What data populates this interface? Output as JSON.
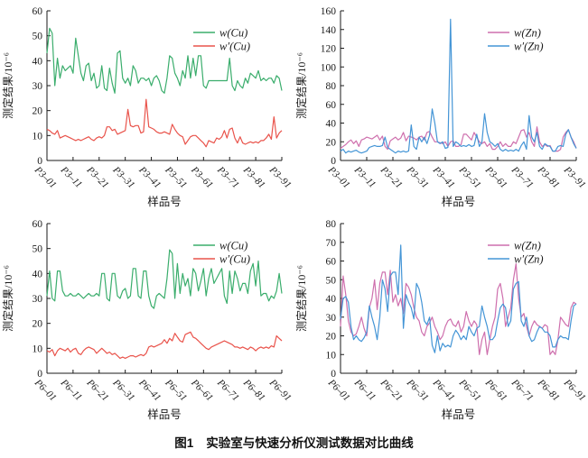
{
  "figure": {
    "caption_label": "图1",
    "caption_text": "实验室与快速分析仪测试数据对比曲线"
  },
  "colors": {
    "green": "#3aad6c",
    "red": "#e9534b",
    "pink": "#ce6fad",
    "blue": "#4495d6",
    "axis": "#1a1a1a"
  },
  "chart_data": [
    {
      "type": "line",
      "panel": "top-left",
      "ylabel": "测定结果/10⁻⁶",
      "xlabel": "样品号",
      "ylim": [
        0,
        60
      ],
      "yticks": [
        0,
        10,
        20,
        30,
        40,
        50,
        60
      ],
      "xtick_positions": [
        1,
        11,
        21,
        31,
        41,
        51,
        61,
        71,
        81,
        91
      ],
      "xtick_labels": [
        "P3–01",
        "P3–11",
        "P3–21",
        "P3–31",
        "P3–41",
        "P3–51",
        "P3–61",
        "P3–71",
        "P3–81",
        "P3–91"
      ],
      "grid": false,
      "legend_position": "top-right-inside",
      "series": [
        {
          "name": "w(Cu)",
          "color": "#3aad6c",
          "values": [
            43,
            53,
            51,
            30,
            41,
            33,
            38,
            36,
            37,
            38,
            35,
            49,
            42,
            35,
            32,
            38,
            39,
            32,
            35,
            29,
            30,
            38,
            29,
            28,
            37,
            31,
            27,
            43,
            44,
            33,
            31,
            33,
            30,
            38,
            36,
            31,
            33,
            33,
            32,
            33,
            30,
            33,
            34,
            32,
            28,
            27,
            33,
            42,
            41,
            35,
            33,
            30,
            36,
            33,
            42,
            33,
            41,
            34,
            42,
            42,
            30,
            29,
            32,
            32,
            32,
            32,
            32,
            32,
            32,
            32,
            41,
            30,
            28,
            32,
            30,
            29,
            33,
            31,
            35,
            34,
            33,
            36,
            32,
            33,
            32,
            33,
            33,
            31,
            34,
            33,
            28
          ]
        },
        {
          "name": "w′(Cu)",
          "color": "#e9534b",
          "values": [
            12.5,
            12,
            11,
            10.5,
            12,
            9,
            9.5,
            10,
            9.5,
            9,
            8.5,
            8,
            8.5,
            8,
            8.5,
            9,
            9.5,
            8.5,
            8,
            9,
            9.5,
            9,
            10,
            13.5,
            13.5,
            12,
            12.5,
            10.5,
            11,
            11.5,
            12,
            20.5,
            14,
            13.5,
            14,
            14,
            11,
            11.5,
            24.5,
            13.5,
            13,
            12.5,
            11.5,
            11,
            11,
            11.5,
            11,
            10.5,
            14.5,
            12.5,
            11,
            10,
            9.5,
            6.5,
            8,
            9.5,
            10,
            10,
            9,
            8,
            7,
            5.5,
            8,
            7.5,
            7,
            9,
            8.5,
            9.5,
            12,
            9,
            12.5,
            13,
            9,
            7,
            9.5,
            7,
            6.5,
            7,
            7.5,
            7,
            7.5,
            7,
            8,
            8,
            9,
            10.5,
            8.5,
            17.5,
            9,
            11,
            12
          ]
        }
      ]
    },
    {
      "type": "line",
      "panel": "top-right",
      "ylabel": "测定结果/10⁻⁶",
      "xlabel": "样品号",
      "ylim": [
        0,
        160
      ],
      "yticks": [
        0,
        20,
        40,
        60,
        80,
        100,
        120,
        140,
        160
      ],
      "xtick_positions": [
        1,
        11,
        21,
        31,
        41,
        51,
        61,
        71,
        81,
        91
      ],
      "xtick_labels": [
        "P3–01",
        "P3–11",
        "P3–21",
        "P3–31",
        "P3–41",
        "P3–51",
        "P3–61",
        "P3–71",
        "P3–81",
        "P3–91"
      ],
      "grid": false,
      "legend_position": "top-right-inside",
      "series": [
        {
          "name": "w(Zn)",
          "color": "#ce6fad",
          "values": [
            13,
            15,
            17,
            20,
            22,
            18,
            21,
            15,
            22,
            23,
            25,
            24,
            23,
            25,
            27,
            22,
            26,
            15,
            12,
            21,
            23,
            25,
            22,
            24,
            30,
            21,
            26,
            25,
            24,
            22,
            25,
            26,
            22,
            30,
            31,
            25,
            20,
            20,
            19,
            18,
            20,
            15,
            20,
            21,
            15,
            15,
            17,
            28,
            28,
            25,
            22,
            30,
            25,
            20,
            18,
            20,
            15,
            18,
            12,
            12,
            15,
            20,
            15,
            18,
            15,
            15,
            20,
            18,
            25,
            32,
            33,
            25,
            30,
            20,
            15,
            36,
            20,
            15,
            17,
            15,
            16,
            10,
            10,
            10,
            12,
            25,
            30,
            33,
            25,
            20,
            13
          ]
        },
        {
          "name": "w′(Zn)",
          "color": "#4495d6",
          "values": [
            10,
            12,
            8,
            10,
            9,
            10,
            11,
            9,
            8,
            9,
            10,
            14,
            15,
            16,
            15,
            15,
            16,
            25,
            14,
            12,
            10,
            8,
            10,
            9,
            10,
            9,
            10,
            38,
            15,
            12,
            25,
            20,
            25,
            18,
            27,
            55,
            40,
            20,
            18,
            20,
            13,
            14,
            151,
            15,
            20,
            18,
            15,
            16,
            15,
            17,
            15,
            16,
            28,
            15,
            20,
            50,
            30,
            20,
            18,
            15,
            18,
            12,
            10,
            12,
            10,
            11,
            10,
            12,
            10,
            16,
            20,
            12,
            48,
            25,
            20,
            30,
            15,
            12,
            18,
            16,
            15,
            10,
            10,
            15,
            16,
            15,
            28,
            33,
            25,
            18,
            13
          ]
        }
      ]
    },
    {
      "type": "line",
      "panel": "bottom-left",
      "ylabel": "测定结果/10⁻⁶",
      "xlabel": "样品号",
      "ylim": [
        0,
        60
      ],
      "yticks": [
        0,
        10,
        20,
        30,
        40,
        50,
        60
      ],
      "xtick_positions": [
        1,
        11,
        21,
        31,
        41,
        51,
        61,
        71,
        81,
        91
      ],
      "xtick_labels": [
        "P6–01",
        "P6–11",
        "P6–21",
        "P6–31",
        "P6–41",
        "P6–51",
        "P6–61",
        "P6–71",
        "P6–81",
        "P6–91"
      ],
      "grid": false,
      "legend_position": "top-right-inside",
      "series": [
        {
          "name": "w(Cu)",
          "color": "#3aad6c",
          "values": [
            31,
            41,
            30,
            29,
            41,
            41,
            33,
            31,
            31,
            32,
            31,
            31,
            32,
            31,
            30,
            31,
            32,
            31,
            31,
            32,
            31,
            40,
            40,
            30,
            29,
            40,
            40,
            31,
            30,
            33,
            34,
            30,
            31,
            42,
            42,
            31,
            30,
            41,
            41,
            31,
            27,
            26,
            31,
            32,
            31,
            30,
            38,
            49.5,
            48,
            30,
            44,
            32,
            40,
            35,
            38,
            31,
            42,
            40,
            33,
            37,
            42,
            31,
            38,
            42,
            36,
            38,
            40,
            42,
            31,
            28,
            41,
            32,
            41,
            38,
            33,
            36,
            36,
            32,
            41,
            44,
            35,
            45,
            31,
            32,
            32,
            29,
            31,
            30,
            33,
            40,
            32
          ]
        },
        {
          "name": "w′(Cu)",
          "color": "#e9534b",
          "values": [
            9,
            8.5,
            9.5,
            7,
            9,
            10,
            9.5,
            9,
            10,
            8.5,
            9.5,
            10,
            8,
            7.5,
            9,
            10,
            10.5,
            10,
            9.5,
            8,
            9,
            10,
            9,
            8,
            8.5,
            7.5,
            8,
            7,
            6,
            6.5,
            6,
            6.5,
            7,
            7,
            6.5,
            7,
            7.5,
            7,
            8,
            10.5,
            11,
            10.5,
            11,
            11.5,
            12,
            13.5,
            12,
            14,
            13,
            16,
            14.5,
            13,
            12.5,
            15.5,
            16,
            16.5,
            14.5,
            14,
            13,
            12,
            11,
            10,
            9.5,
            10.5,
            11,
            11.5,
            12,
            12.5,
            13,
            12.5,
            12,
            11.5,
            10.5,
            10.5,
            10,
            10.5,
            10,
            9.5,
            10.5,
            10,
            9,
            10,
            10.5,
            10,
            10.5,
            10,
            11,
            10.5,
            15,
            14,
            13
          ]
        }
      ]
    },
    {
      "type": "line",
      "panel": "bottom-right",
      "ylabel": "测定结果/10⁻⁶",
      "xlabel": "样品号",
      "ylim": [
        0,
        80
      ],
      "yticks": [
        0,
        10,
        20,
        30,
        40,
        50,
        60,
        70,
        80
      ],
      "xtick_positions": [
        1,
        11,
        21,
        31,
        41,
        51,
        61,
        71,
        81,
        91
      ],
      "xtick_labels": [
        "P6–01",
        "P6–11",
        "P6–21",
        "P6–31",
        "P6–41",
        "P6–51",
        "P6–61",
        "P6–71",
        "P6–81",
        "P6–91"
      ],
      "grid": false,
      "legend_position": "top-right-inside",
      "series": [
        {
          "name": "w(Zn)",
          "color": "#ce6fad",
          "values": [
            25,
            52,
            42,
            28,
            22,
            20,
            21,
            25,
            30,
            24,
            20,
            35,
            40,
            50,
            34,
            48,
            54,
            54,
            42,
            55,
            38,
            42,
            36,
            40,
            32,
            48,
            46,
            42,
            35,
            30,
            28,
            22,
            20,
            25,
            27,
            30,
            25,
            22,
            18,
            20,
            25,
            28,
            29,
            26,
            25,
            28,
            22,
            25,
            33,
            28,
            25,
            28,
            26,
            10,
            18,
            22,
            10,
            18,
            25,
            30,
            45,
            48,
            40,
            25,
            30,
            35,
            50,
            58.5,
            40,
            30,
            32,
            25,
            20,
            25,
            28,
            26,
            25,
            24,
            26,
            25,
            10,
            12,
            10,
            18,
            30,
            28,
            26,
            25,
            35,
            38,
            37
          ]
        },
        {
          "name": "w′(Zn)",
          "color": "#4495d6",
          "values": [
            29,
            40,
            41,
            38,
            25,
            18,
            20,
            18,
            17,
            19,
            22,
            36,
            30,
            25,
            18,
            30,
            50,
            45,
            33,
            52,
            54,
            54,
            42,
            68.5,
            24,
            42,
            38,
            35,
            29,
            48,
            45,
            38,
            28,
            26,
            30,
            15,
            11,
            20,
            12,
            16,
            14,
            15,
            14,
            20,
            23,
            21,
            18,
            20,
            18,
            25,
            22,
            20,
            24,
            25,
            36,
            30,
            25,
            18,
            18,
            20,
            28,
            35,
            37,
            35,
            25,
            28,
            45,
            48,
            49,
            28,
            25,
            30,
            20,
            17,
            18,
            22,
            25,
            24,
            22,
            22,
            20,
            14,
            14,
            18,
            20,
            19,
            19,
            18,
            28,
            36,
            37
          ]
        }
      ]
    }
  ]
}
